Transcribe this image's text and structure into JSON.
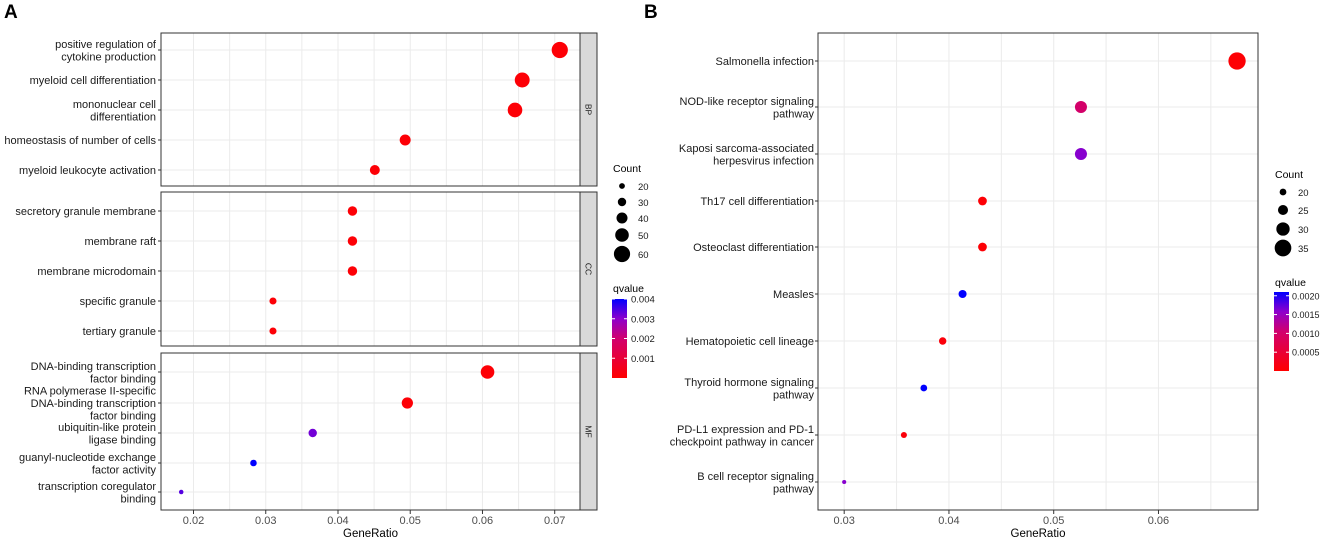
{
  "panels": {
    "a_letter": "A",
    "b_letter": "B"
  },
  "chart_data": [
    {
      "type": "scatter",
      "panel": "A",
      "xlabel": "GeneRatio",
      "xlim": [
        0.0155,
        0.0735
      ],
      "xticks": [
        0.02,
        0.03,
        0.04,
        0.05,
        0.06,
        0.07
      ],
      "xtick_labels": [
        "0.02",
        "0.03",
        "0.04",
        "0.05",
        "0.06",
        "0.07"
      ],
      "facets": [
        {
          "label": "BP",
          "terms": [
            {
              "term": [
                "positive regulation of",
                "cytokine production"
              ],
              "ratio": 0.0707,
              "count": 60,
              "qvalue": 0.0001
            },
            {
              "term": [
                "myeloid cell differentiation"
              ],
              "ratio": 0.0655,
              "count": 55,
              "qvalue": 0.0001
            },
            {
              "term": [
                "mononuclear cell",
                "differentiation"
              ],
              "ratio": 0.0645,
              "count": 54,
              "qvalue": 0.0001
            },
            {
              "term": [
                "homeostasis of number of cells"
              ],
              "ratio": 0.0493,
              "count": 40,
              "qvalue": 0.0001
            },
            {
              "term": [
                "myeloid leukocyte activation"
              ],
              "ratio": 0.0451,
              "count": 36,
              "qvalue": 0.0001
            }
          ]
        },
        {
          "label": "CC",
          "terms": [
            {
              "term": [
                "secretory granule membrane"
              ],
              "ratio": 0.042,
              "count": 34,
              "qvalue": 0.0001
            },
            {
              "term": [
                "membrane raft"
              ],
              "ratio": 0.042,
              "count": 34,
              "qvalue": 0.0001
            },
            {
              "term": [
                "membrane microdomain"
              ],
              "ratio": 0.042,
              "count": 34,
              "qvalue": 0.0001
            },
            {
              "term": [
                "specific granule"
              ],
              "ratio": 0.031,
              "count": 25,
              "qvalue": 0.0001
            },
            {
              "term": [
                "tertiary granule"
              ],
              "ratio": 0.031,
              "count": 25,
              "qvalue": 0.0001
            }
          ]
        },
        {
          "label": "MF",
          "terms": [
            {
              "term": [
                "DNA-binding transcription",
                "factor binding"
              ],
              "ratio": 0.0607,
              "count": 50,
              "qvalue": 0.0001
            },
            {
              "term": [
                "RNA polymerase II-specific",
                "DNA-binding transcription",
                "factor binding"
              ],
              "ratio": 0.0496,
              "count": 41,
              "qvalue": 0.0001
            },
            {
              "term": [
                "ubiquitin-like protein",
                "ligase binding"
              ],
              "ratio": 0.0365,
              "count": 30,
              "qvalue": 0.0032
            },
            {
              "term": [
                "guanyl-nucleotide exchange",
                "factor activity"
              ],
              "ratio": 0.0283,
              "count": 23,
              "qvalue": 0.004
            },
            {
              "term": [
                "transcription coregulator",
                "binding"
              ],
              "ratio": 0.0183,
              "count": 15,
              "qvalue": 0.0034
            }
          ]
        }
      ],
      "size_legend": {
        "title": "Count",
        "values": [
          20,
          30,
          40,
          50,
          60
        ],
        "labels": [
          "20",
          "30",
          "40",
          "50",
          "60"
        ]
      },
      "color_legend": {
        "title": "qvalue",
        "range": [
          0.0,
          0.004
        ],
        "ticks": [
          0.001,
          0.002,
          0.003,
          0.004
        ],
        "tick_labels": [
          "0.001",
          "0.002",
          "0.003",
          "0.004"
        ],
        "low_color": "#ff0000",
        "high_color": "#0000ff"
      }
    },
    {
      "type": "scatter",
      "panel": "B",
      "xlabel": "GeneRatio",
      "xlim": [
        0.0275,
        0.0695
      ],
      "xticks": [
        0.03,
        0.04,
        0.05,
        0.06
      ],
      "xtick_labels": [
        "0.03",
        "0.04",
        "0.05",
        "0.06"
      ],
      "terms": [
        {
          "term": [
            "Salmonella infection"
          ],
          "ratio": 0.0675,
          "count": 36,
          "qvalue": 5e-05
        },
        {
          "term": [
            "NOD-like receptor signaling",
            "pathway"
          ],
          "ratio": 0.0526,
          "count": 28,
          "qvalue": 0.001
        },
        {
          "term": [
            "Kaposi sarcoma-associated",
            "herpesvirus infection"
          ],
          "ratio": 0.0526,
          "count": 28,
          "qvalue": 0.0016
        },
        {
          "term": [
            "Th17 cell differentiation"
          ],
          "ratio": 0.0432,
          "count": 23,
          "qvalue": 5e-05
        },
        {
          "term": [
            "Osteoclast differentiation"
          ],
          "ratio": 0.0432,
          "count": 23,
          "qvalue": 5e-05
        },
        {
          "term": [
            "Measles"
          ],
          "ratio": 0.0413,
          "count": 22,
          "qvalue": 0.0021
        },
        {
          "term": [
            "Hematopoietic cell lineage"
          ],
          "ratio": 0.0394,
          "count": 21,
          "qvalue": 0.0001
        },
        {
          "term": [
            "Thyroid hormone signaling",
            "pathway"
          ],
          "ratio": 0.0376,
          "count": 20,
          "qvalue": 0.0021
        },
        {
          "term": [
            "PD-L1 expression and PD-1",
            "checkpoint pathway in cancer"
          ],
          "ratio": 0.0357,
          "count": 19,
          "qvalue": 0.0001
        },
        {
          "term": [
            "B cell receptor signaling",
            "pathway"
          ],
          "ratio": 0.03,
          "count": 16,
          "qvalue": 0.0016
        }
      ],
      "size_legend": {
        "title": "Count",
        "values": [
          20,
          25,
          30,
          35
        ],
        "labels": [
          "20",
          "25",
          "30",
          "35"
        ]
      },
      "color_legend": {
        "title": "qvalue",
        "range": [
          0.0,
          0.0021
        ],
        "ticks": [
          0.0005,
          0.001,
          0.0015,
          0.002
        ],
        "tick_labels": [
          "0.0005",
          "0.0010",
          "0.0015",
          "0.0020"
        ],
        "low_color": "#ff0000",
        "high_color": "#0000ff"
      }
    }
  ]
}
